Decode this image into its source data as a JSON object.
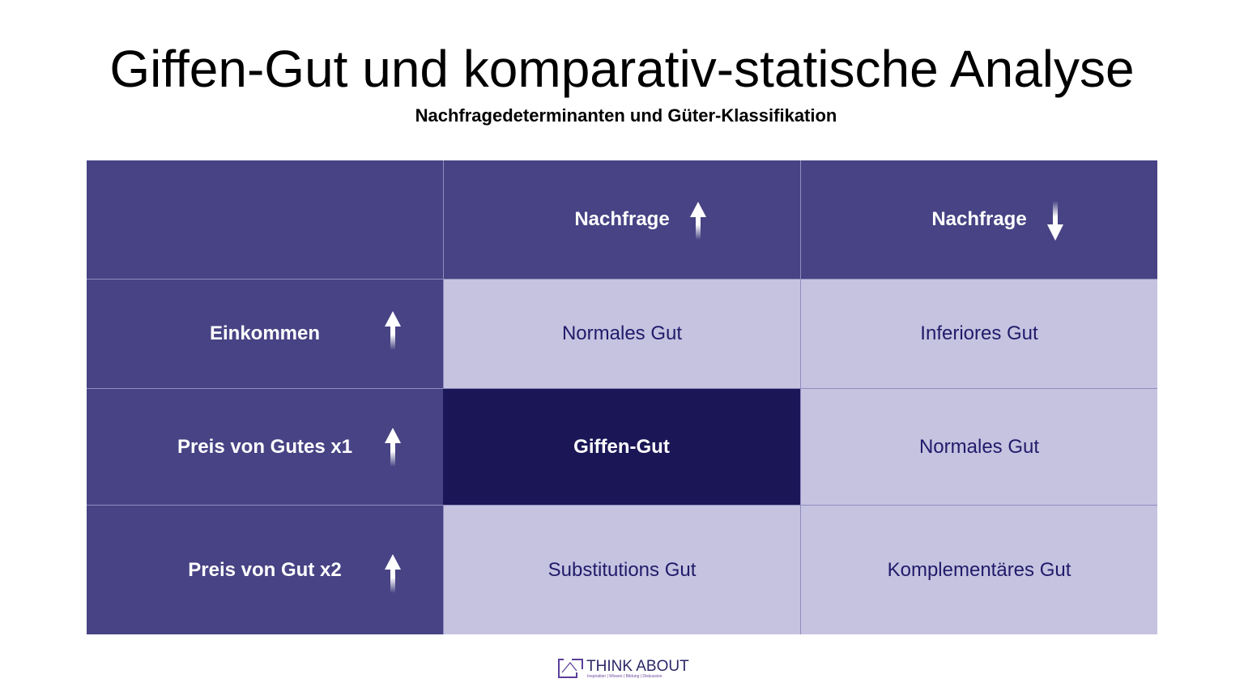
{
  "header": {
    "title": "Giffen-Gut und komparativ-statische Analyse",
    "subtitle": "Nachfragedeterminanten und Güter-Klassifikation"
  },
  "table": {
    "columns": [
      "Nachfrage",
      "Nachfrage"
    ],
    "rows": [
      {
        "label": "Einkommen",
        "cells": [
          "Normales Gut",
          "Inferiores Gut"
        ]
      },
      {
        "label": "Preis von Gutes x1",
        "cells": [
          "Giffen-Gut",
          "Normales Gut"
        ]
      },
      {
        "label": "Preis von Gut x2",
        "cells": [
          "Substitutions Gut",
          "Komplementäres Gut"
        ]
      }
    ]
  },
  "footer": {
    "brand": "THINK ABOUT",
    "tagline": "Inspiration | Wissen | Bildung | Diskussion"
  }
}
